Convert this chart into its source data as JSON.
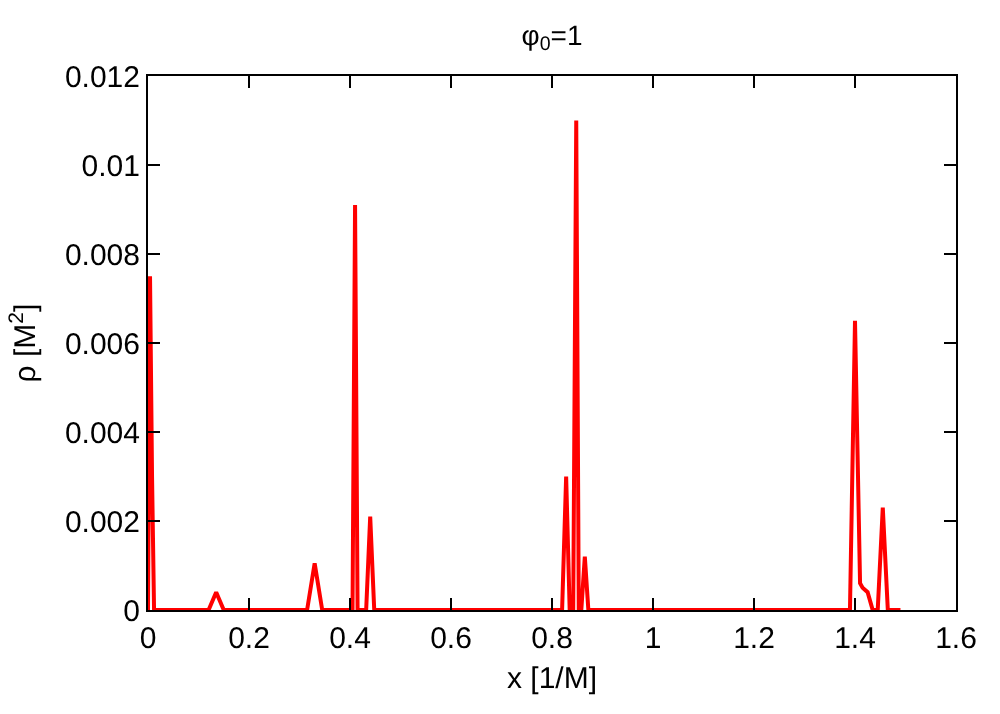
{
  "chart_data": {
    "type": "line",
    "title": "φ$_{0}$=1",
    "xlabel": "x [1/M]",
    "ylabel": "ρ [M$^{2}$]",
    "xlim": [
      0,
      1.6
    ],
    "xticks": [
      0,
      0.2,
      0.4,
      0.6,
      0.8,
      1,
      1.2,
      1.4,
      1.6
    ],
    "ylim": [
      0,
      0.012
    ],
    "yticks": [
      0,
      0.002,
      0.004,
      0.006,
      0.008,
      0.01,
      0.012
    ],
    "legend": false,
    "marker": "none",
    "line_style": "solid",
    "series": [
      {
        "color": "#ff0000",
        "x": [
          0,
          0.004,
          0.008,
          0.012,
          0.016,
          0.05,
          0.1,
          0.12,
          0.135,
          0.15,
          0.17,
          0.3,
          0.315,
          0.33,
          0.345,
          0.36,
          0.4,
          0.405,
          0.41,
          0.415,
          0.425,
          0.432,
          0.44,
          0.448,
          0.46,
          0.6,
          0.8,
          0.82,
          0.828,
          0.835,
          0.842,
          0.848,
          0.853,
          0.858,
          0.865,
          0.872,
          0.88,
          0.9,
          1.1,
          1.38,
          1.39,
          1.4,
          1.41,
          1.415,
          1.425,
          1.435,
          1.445,
          1.455,
          1.465,
          1.475,
          1.49
        ],
        "values": [
          0,
          0.0075,
          0.003,
          0,
          0,
          0,
          0,
          0,
          0.0004,
          0,
          0,
          0,
          0,
          0.00105,
          0,
          0,
          0,
          0,
          0.0091,
          0,
          0,
          0,
          0.0021,
          0,
          0,
          0,
          0,
          0,
          0.003,
          0,
          0,
          0.011,
          0,
          0,
          0.0012,
          0,
          0,
          0,
          0,
          0,
          0,
          0.0065,
          0.0006,
          0.0005,
          0.0004,
          0,
          0,
          0.0023,
          0,
          0,
          0
        ]
      }
    ]
  }
}
